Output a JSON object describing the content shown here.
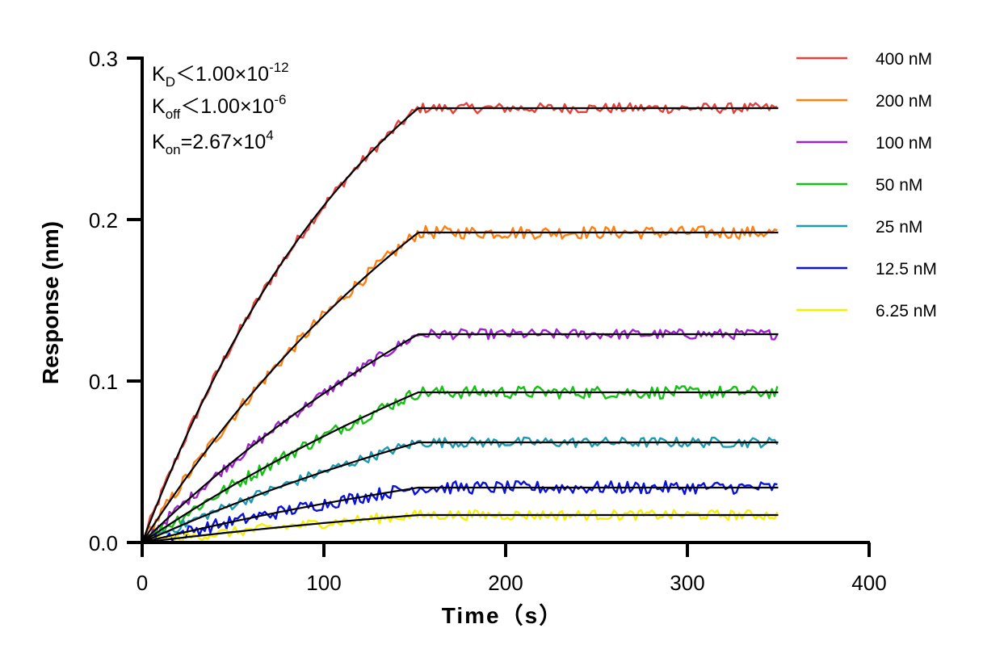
{
  "chart_data": {
    "type": "line",
    "xlabel": "Time（s）",
    "ylabel": "Response (nm)",
    "xlim": [
      0,
      400
    ],
    "ylim": [
      0,
      0.3
    ],
    "xticks": [
      "0",
      "100",
      "200",
      "300",
      "400"
    ],
    "yticks": [
      "0.0",
      "0.1",
      "0.2",
      "0.3"
    ],
    "grid": false,
    "legend_position": "right",
    "association_end_time": 152,
    "end_time": 350,
    "annotations": {
      "kd": {
        "base": "K",
        "sub": "D",
        "rel": "＜",
        "mant": "1.00×10",
        "exp": "-12"
      },
      "koff": {
        "base": "K",
        "sub": "off",
        "rel": "＜",
        "mant": "1.00×10",
        "exp": "-6"
      },
      "kon": {
        "base": "K",
        "sub": "on",
        "rel": "=",
        "mant": "2.67×10",
        "exp": "4"
      }
    },
    "series": [
      {
        "name": "400 nM",
        "color": "#e8413c",
        "plateau": 0.269,
        "k": 0.0075
      },
      {
        "name": "200 nM",
        "color": "#ff7f0e",
        "plateau": 0.192,
        "k": 0.0045
      },
      {
        "name": "100 nM",
        "color": "#a020d0",
        "plateau": 0.129,
        "k": 0.0035
      },
      {
        "name": "50 nM",
        "color": "#13c213",
        "plateau": 0.093,
        "k": 0.003
      },
      {
        "name": "25 nM",
        "color": "#1a9bb0",
        "plateau": 0.062,
        "k": 0.003
      },
      {
        "name": "12.5 nM",
        "color": "#0a10e0",
        "plateau": 0.034,
        "k": 0.003
      },
      {
        "name": "6.25 nM",
        "color": "#f5f000",
        "plateau": 0.017,
        "k": 0.003
      }
    ]
  }
}
